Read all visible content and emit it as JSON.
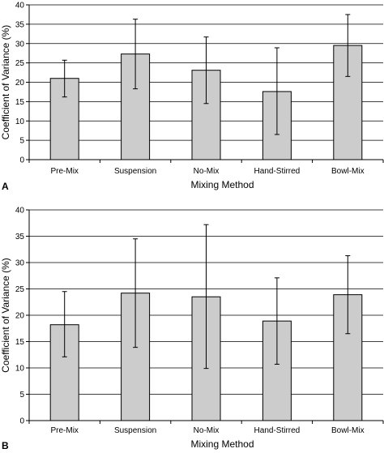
{
  "chart_data": [
    {
      "type": "bar",
      "panel_label": "A",
      "categories": [
        "Pre-Mix",
        "Suspension",
        "No-Mix",
        "Hand-Stirred",
        "Bowl-Mix"
      ],
      "values": [
        21.0,
        27.3,
        23.1,
        17.6,
        29.5
      ],
      "error_low": [
        16.2,
        18.3,
        14.5,
        6.5,
        21.5
      ],
      "error_high": [
        25.7,
        36.3,
        31.7,
        28.9,
        37.5
      ],
      "xlabel": "Mixing Method",
      "ylabel": "Coefficient of Variance (%)",
      "ylim": [
        0,
        40
      ],
      "yticks": [
        "0",
        "5",
        "10",
        "15",
        "20",
        "25",
        "30",
        "35",
        "40"
      ],
      "grid": true,
      "bar_color": "#cccccc"
    },
    {
      "type": "bar",
      "panel_label": "B",
      "categories": [
        "Pre-Mix",
        "Suspension",
        "No-Mix",
        "Hand-Stirred",
        "Bowl-Mix"
      ],
      "values": [
        18.2,
        24.2,
        23.5,
        18.9,
        23.9
      ],
      "error_low": [
        12.1,
        13.9,
        9.9,
        10.7,
        16.5
      ],
      "error_high": [
        24.5,
        34.5,
        37.2,
        27.1,
        31.3
      ],
      "xlabel": "Mixing Method",
      "ylabel": "Coefficient of Variance (%)",
      "ylim": [
        0,
        40
      ],
      "yticks": [
        "0",
        "5",
        "10",
        "15",
        "20",
        "25",
        "30",
        "35",
        "40"
      ],
      "grid": true,
      "bar_color": "#cccccc"
    }
  ]
}
